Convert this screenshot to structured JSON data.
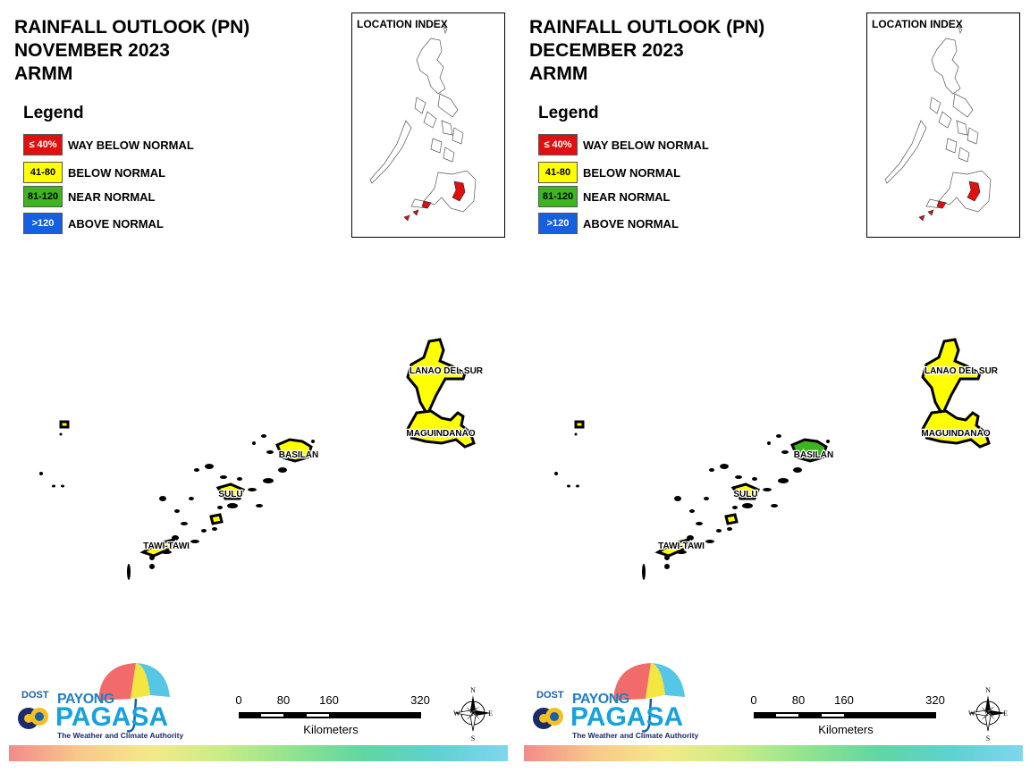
{
  "panels": [
    {
      "title_line1": "RAINFALL OUTLOOK (PN)",
      "title_line2": "NOVEMBER 2023",
      "title_line3": "ARMM",
      "basilan_color": "#ffff00"
    },
    {
      "title_line1": "RAINFALL OUTLOOK (PN)",
      "title_line2": "DECEMBER 2023",
      "title_line3": "ARMM",
      "basilan_color": "#3cb51e"
    }
  ],
  "legend": {
    "title": "Legend",
    "items": [
      {
        "range": "≤ 40%",
        "label": "WAY BELOW NORMAL",
        "color": "#e01010"
      },
      {
        "range": "41-80",
        "label": "BELOW NORMAL",
        "color": "#ffff00"
      },
      {
        "range": "81-120",
        "label": "NEAR NORMAL",
        "color": "#3cb51e"
      },
      {
        "range": ">120",
        "label": "ABOVE NORMAL",
        "color": "#1560e0"
      }
    ]
  },
  "location_index": {
    "title": "LOCATION INDEX"
  },
  "provinces": {
    "lanao_del_sur": "LANAO DEL SUR",
    "maguindanao": "MAGUINDANAO",
    "basilan": "BASILAN",
    "sulu": "SULU",
    "tawi_tawi": "TAWI-TAWI"
  },
  "scale": {
    "ticks": [
      "0",
      "80",
      "160",
      "320"
    ],
    "unit": "Kilometers"
  },
  "compass": {
    "n": "N",
    "s": "S",
    "e": "E",
    "w": "W"
  },
  "logo": {
    "dost": "DOST",
    "payong": "PAYONG",
    "pagasa": "PAGASA",
    "tagline": "The Weather and Climate Authority"
  },
  "colors": {
    "way_below": "#e01010",
    "below": "#ffff00",
    "near": "#3cb51e",
    "above": "#1560e0"
  }
}
